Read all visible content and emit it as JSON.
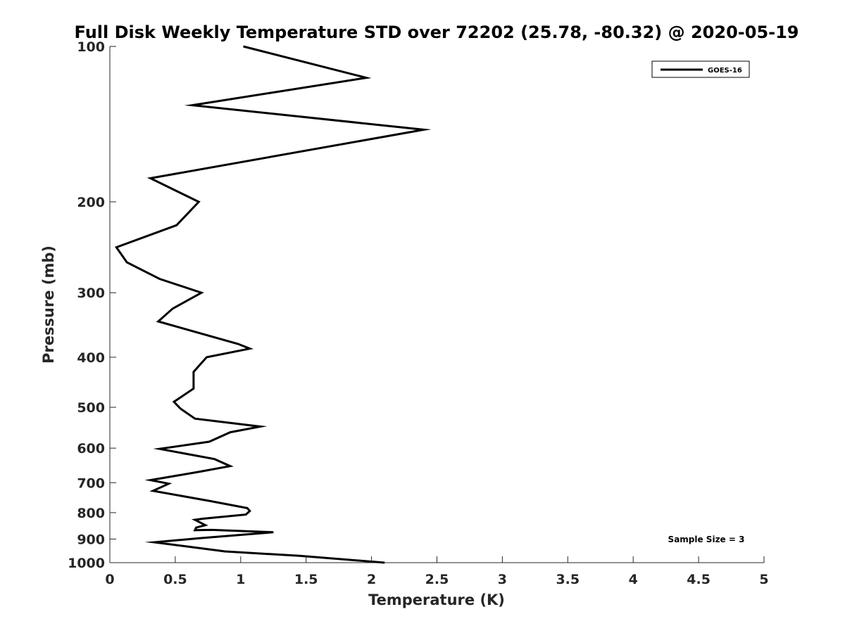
{
  "chart_data": {
    "type": "line",
    "title": "Full Disk Weekly Temperature STD over 72202 (25.78, -80.32) @ 2020-05-19",
    "xlabel": "Temperature (K)",
    "ylabel": "Pressure (mb)",
    "xlim": [
      0,
      5
    ],
    "ylim": [
      1000,
      100
    ],
    "yscale": "log",
    "y_reversed": true,
    "x_ticks": [
      0,
      0.5,
      1,
      1.5,
      2,
      2.5,
      3,
      3.5,
      4,
      4.5,
      5
    ],
    "x_tick_labels": [
      "0",
      "0.5",
      "1",
      "1.5",
      "2",
      "2.5",
      "3",
      "3.5",
      "4",
      "4.5",
      "5"
    ],
    "y_ticks": [
      100,
      200,
      300,
      400,
      500,
      600,
      700,
      800,
      900,
      1000
    ],
    "y_tick_labels": [
      "100",
      "200",
      "300",
      "400",
      "500",
      "600",
      "700",
      "800",
      "900",
      "1000"
    ],
    "grid": false,
    "legend_position": "top-right",
    "annotation": "Sample Size = 3",
    "series": [
      {
        "name": "GOES-16",
        "color": "#000000",
        "points": [
          [
            1.02,
            100
          ],
          [
            1.96,
            115
          ],
          [
            0.63,
            130
          ],
          [
            2.4,
            145
          ],
          [
            0.31,
            180
          ],
          [
            0.68,
            200
          ],
          [
            0.51,
            222
          ],
          [
            0.05,
            245
          ],
          [
            0.13,
            262
          ],
          [
            0.38,
            282
          ],
          [
            0.7,
            300
          ],
          [
            0.48,
            322
          ],
          [
            0.37,
            341
          ],
          [
            0.98,
            377
          ],
          [
            1.07,
            385
          ],
          [
            0.74,
            400
          ],
          [
            0.64,
            427
          ],
          [
            0.64,
            460
          ],
          [
            0.49,
            488
          ],
          [
            0.54,
            503
          ],
          [
            0.65,
            526
          ],
          [
            1.15,
            545
          ],
          [
            0.92,
            559
          ],
          [
            0.76,
            583
          ],
          [
            0.38,
            602
          ],
          [
            0.8,
            630
          ],
          [
            0.92,
            650
          ],
          [
            0.68,
            667
          ],
          [
            0.31,
            692
          ],
          [
            0.45,
            703
          ],
          [
            0.33,
            726
          ],
          [
            0.77,
            760
          ],
          [
            1.05,
            784
          ],
          [
            1.07,
            794
          ],
          [
            1.04,
            807
          ],
          [
            0.71,
            822
          ],
          [
            0.65,
            826
          ],
          [
            0.73,
            846
          ],
          [
            0.66,
            855
          ],
          [
            0.65,
            865
          ],
          [
            0.78,
            864
          ],
          [
            1.25,
            873
          ],
          [
            0.7,
            896
          ],
          [
            0.34,
            913
          ],
          [
            0.57,
            929
          ],
          [
            0.88,
            951
          ],
          [
            1.45,
            970
          ],
          [
            2.1,
            1000
          ]
        ]
      }
    ]
  }
}
